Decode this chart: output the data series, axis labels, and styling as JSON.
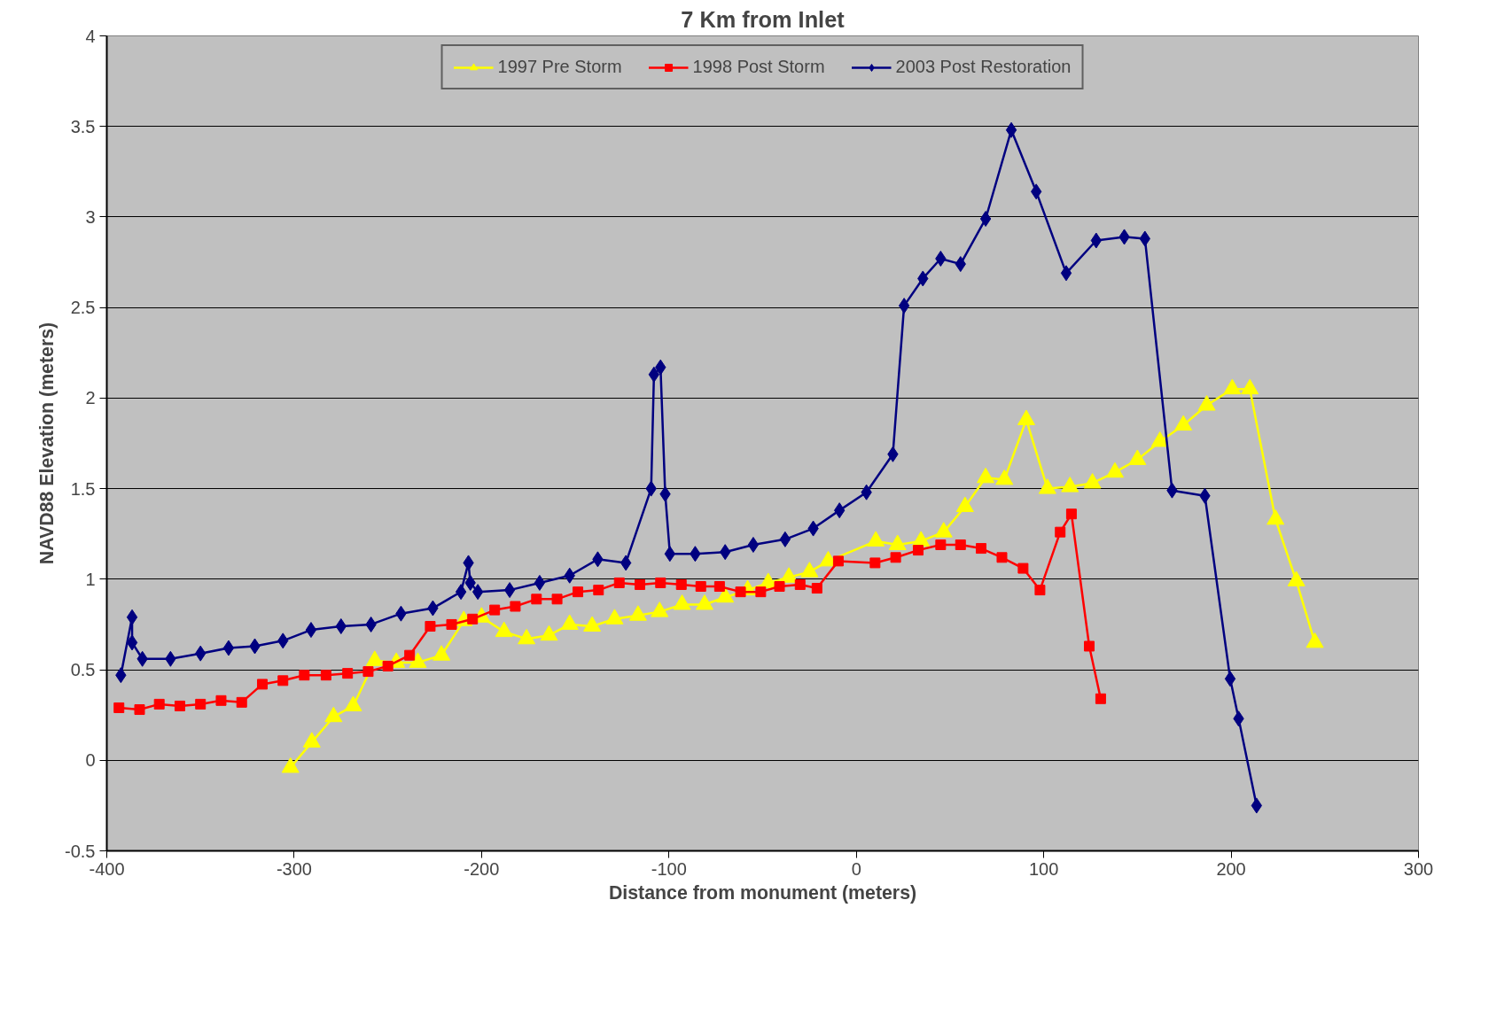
{
  "chart_data": {
    "type": "line",
    "title": "7 Km from Inlet",
    "xlabel": "Distance from monument (meters)",
    "ylabel": "NAVD88 Elevation (meters)",
    "xlim": [
      -400,
      300
    ],
    "xticks": [
      -400,
      -300,
      -200,
      -100,
      0,
      100,
      200,
      300
    ],
    "ylim": [
      -0.5,
      4
    ],
    "yticks": [
      -0.5,
      0,
      0.5,
      1,
      1.5,
      2,
      2.5,
      3,
      3.5,
      4
    ],
    "grid": "y",
    "legend": "top",
    "series": [
      {
        "name": "1997 Pre Storm",
        "color": "#ffff00",
        "marker": "triangle",
        "x": [
          -302,
          -290.6,
          -279,
          -268.5,
          -257,
          -245.5,
          -234,
          -221.4,
          -209.5,
          -200,
          -188,
          -176,
          -164,
          -153,
          -141,
          -129,
          -116.5,
          -105,
          -93,
          -81,
          -70,
          -58,
          -47,
          -36,
          -25,
          -15,
          10.4,
          22,
          34.5,
          46.6,
          58,
          69,
          79,
          90.7,
          102,
          114,
          126,
          138,
          150,
          162,
          174.5,
          187,
          200.6,
          210,
          223.7,
          234.8,
          244.7
        ],
        "values": [
          -0.04,
          0.1,
          0.24,
          0.3,
          0.55,
          0.54,
          0.54,
          0.58,
          0.77,
          0.79,
          0.71,
          0.67,
          0.69,
          0.75,
          0.74,
          0.78,
          0.8,
          0.82,
          0.86,
          0.86,
          0.9,
          0.94,
          0.98,
          1.01,
          1.04,
          1.1,
          1.21,
          1.19,
          1.21,
          1.26,
          1.4,
          1.56,
          1.55,
          1.88,
          1.5,
          1.51,
          1.53,
          1.59,
          1.66,
          1.76,
          1.85,
          1.96,
          2.05,
          2.05,
          1.33,
          0.99,
          0.65
        ]
      },
      {
        "name": "1998 Post Storm",
        "color": "#ff0000",
        "marker": "square",
        "x": [
          -393.5,
          -382.5,
          -372,
          -361,
          -350,
          -339,
          -328,
          -317,
          -306,
          -294.6,
          -283,
          -271.5,
          -260.5,
          -250,
          -238.4,
          -227.4,
          -216,
          -204.8,
          -193,
          -182,
          -170.7,
          -159.7,
          -148.6,
          -137.6,
          -126.5,
          -115.5,
          -104.5,
          -93.4,
          -83,
          -73,
          -61.8,
          -51,
          -41,
          -30,
          -21,
          -9.6,
          10,
          21,
          33,
          45,
          55.6,
          66.6,
          77.7,
          89,
          98,
          108.8,
          114.8,
          124.3,
          130.4
        ],
        "values": [
          0.29,
          0.28,
          0.31,
          0.3,
          0.31,
          0.33,
          0.32,
          0.42,
          0.44,
          0.47,
          0.47,
          0.48,
          0.49,
          0.52,
          0.58,
          0.74,
          0.75,
          0.78,
          0.83,
          0.85,
          0.89,
          0.89,
          0.93,
          0.94,
          0.98,
          0.97,
          0.98,
          0.97,
          0.96,
          0.96,
          0.93,
          0.93,
          0.96,
          0.97,
          0.95,
          1.1,
          1.09,
          1.12,
          1.16,
          1.19,
          1.19,
          1.17,
          1.12,
          1.06,
          0.94,
          1.26,
          1.36,
          0.63,
          0.34
        ]
      },
      {
        "name": "2003 Post Restoration",
        "color": "#000080",
        "marker": "diamond",
        "x": [
          -392.5,
          -386.5,
          -386.5,
          -381,
          -366,
          -350,
          -335,
          -321,
          -306,
          -291,
          -275,
          -259,
          -243,
          -226,
          -211,
          -207,
          -206,
          -202,
          -185,
          -169,
          -153,
          -138,
          -123,
          -109.5,
          -108,
          -104.5,
          -102,
          -99.5,
          -86,
          -70,
          -55,
          -38,
          -23,
          -9,
          5.4,
          19.5,
          25.5,
          35.5,
          45,
          55.6,
          69,
          82.7,
          96,
          112,
          128,
          143,
          154,
          168.5,
          186,
          199.5,
          204,
          213.6
        ],
        "values": [
          0.47,
          0.79,
          0.65,
          0.56,
          0.56,
          0.59,
          0.62,
          0.63,
          0.66,
          0.72,
          0.74,
          0.75,
          0.81,
          0.84,
          0.93,
          1.09,
          0.98,
          0.93,
          0.94,
          0.98,
          1.02,
          1.11,
          1.09,
          1.5,
          2.13,
          2.17,
          1.47,
          1.14,
          1.14,
          1.15,
          1.19,
          1.22,
          1.28,
          1.38,
          1.48,
          1.69,
          2.51,
          2.66,
          2.77,
          2.74,
          2.99,
          3.48,
          3.14,
          2.69,
          2.87,
          2.89,
          2.88,
          1.49,
          1.46,
          0.45,
          0.23,
          -0.25
        ]
      }
    ]
  }
}
